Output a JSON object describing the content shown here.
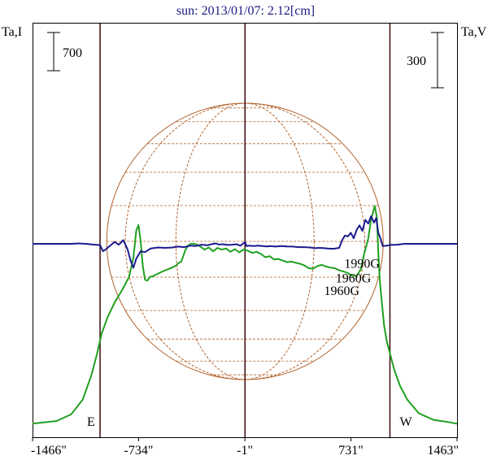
{
  "chart_data": {
    "type": "line",
    "title": "sun: 2013/01/07: 2.12[cm]",
    "left_axis_label": "Ta,I",
    "right_axis_label": "Ta,V",
    "left_scale_bar_value": "700",
    "right_scale_bar_value": "300",
    "x_unit": "arcsec",
    "xlim": [
      -1466,
      1463
    ],
    "x_ticks": [
      {
        "value": -1466,
        "label": "-1466\""
      },
      {
        "value": -734,
        "label": "-734\""
      },
      {
        "value": -1,
        "label": "-1\""
      },
      {
        "value": 731,
        "label": "731\""
      },
      {
        "value": 1463,
        "label": "1463\""
      }
    ],
    "limb_markers": [
      {
        "x": -1000,
        "label": "E"
      },
      {
        "x": 0,
        "label": ""
      },
      {
        "x": 1000,
        "label": "W"
      }
    ],
    "annotations": [
      {
        "text": "1990G",
        "x": 820,
        "y_intensity": 2870
      },
      {
        "text": "1960G",
        "x": 760,
        "y_intensity": 2600
      },
      {
        "text": "1960G",
        "x": 680,
        "y_intensity": 2370
      }
    ],
    "series": [
      {
        "axis": "left",
        "color": "#20a020",
        "values": [
          [
            -1466,
            10
          ],
          [
            -1300,
            60
          ],
          [
            -1200,
            180
          ],
          [
            -1120,
            450
          ],
          [
            -1060,
            900
          ],
          [
            -1020,
            1300
          ],
          [
            -990,
            1650
          ],
          [
            -950,
            1950
          ],
          [
            -900,
            2230
          ],
          [
            -850,
            2450
          ],
          [
            -800,
            2700
          ],
          [
            -770,
            3050
          ],
          [
            -750,
            3550
          ],
          [
            -735,
            3650
          ],
          [
            -720,
            3350
          ],
          [
            -705,
            2900
          ],
          [
            -690,
            2650
          ],
          [
            -675,
            2630
          ],
          [
            -655,
            2700
          ],
          [
            -630,
            2720
          ],
          [
            -600,
            2760
          ],
          [
            -570,
            2800
          ],
          [
            -540,
            2830
          ],
          [
            -505,
            2870
          ],
          [
            -480,
            2900
          ],
          [
            -460,
            2950
          ],
          [
            -440,
            2980
          ],
          [
            -410,
            3200
          ],
          [
            -390,
            3280
          ],
          [
            -370,
            3310
          ],
          [
            -340,
            3300
          ],
          [
            -310,
            3260
          ],
          [
            -280,
            3200
          ],
          [
            -250,
            3240
          ],
          [
            -220,
            3170
          ],
          [
            -190,
            3230
          ],
          [
            -160,
            3200
          ],
          [
            -130,
            3220
          ],
          [
            -100,
            3160
          ],
          [
            -70,
            3210
          ],
          [
            -40,
            3150
          ],
          [
            -10,
            3200
          ],
          [
            20,
            3180
          ],
          [
            50,
            3140
          ],
          [
            80,
            3160
          ],
          [
            110,
            3120
          ],
          [
            140,
            3060
          ],
          [
            170,
            3080
          ],
          [
            200,
            3020
          ],
          [
            230,
            3030
          ],
          [
            260,
            3000
          ],
          [
            290,
            2970
          ],
          [
            320,
            2980
          ],
          [
            350,
            2960
          ],
          [
            380,
            2940
          ],
          [
            410,
            2910
          ],
          [
            440,
            2860
          ],
          [
            470,
            2850
          ],
          [
            500,
            2900
          ],
          [
            530,
            2920
          ],
          [
            560,
            2890
          ],
          [
            590,
            2870
          ],
          [
            620,
            2860
          ],
          [
            650,
            2820
          ],
          [
            680,
            2800
          ],
          [
            710,
            2770
          ],
          [
            740,
            2720
          ],
          [
            770,
            2720
          ],
          [
            800,
            2840
          ],
          [
            820,
            3100
          ],
          [
            850,
            3400
          ],
          [
            870,
            3750
          ],
          [
            895,
            4000
          ],
          [
            910,
            3800
          ],
          [
            920,
            3150
          ],
          [
            930,
            2650
          ],
          [
            940,
            2350
          ],
          [
            960,
            1800
          ],
          [
            980,
            1500
          ],
          [
            1000,
            1300
          ],
          [
            1030,
            1000
          ],
          [
            1070,
            700
          ],
          [
            1120,
            450
          ],
          [
            1200,
            200
          ],
          [
            1300,
            80
          ],
          [
            1400,
            40
          ],
          [
            1463,
            10
          ]
        ]
      },
      {
        "axis": "right",
        "color": "#1a1a90",
        "values": [
          [
            -1466,
            0
          ],
          [
            -1200,
            0
          ],
          [
            -1150,
            2
          ],
          [
            -1100,
            0
          ],
          [
            -1050,
            -4
          ],
          [
            -1000,
            -7
          ],
          [
            -980,
            -40
          ],
          [
            -960,
            -30
          ],
          [
            -930,
            -10
          ],
          [
            -900,
            10
          ],
          [
            -870,
            -5
          ],
          [
            -840,
            20
          ],
          [
            -810,
            -30
          ],
          [
            -790,
            -90
          ],
          [
            -770,
            -130
          ],
          [
            -750,
            -80
          ],
          [
            -720,
            -40
          ],
          [
            -690,
            -45
          ],
          [
            -650,
            -25
          ],
          [
            -600,
            -20
          ],
          [
            -550,
            -22
          ],
          [
            -500,
            -20
          ],
          [
            -460,
            -15
          ],
          [
            -420,
            -18
          ],
          [
            -380,
            -10
          ],
          [
            -340,
            -12
          ],
          [
            -300,
            -5
          ],
          [
            -260,
            -8
          ],
          [
            -220,
            0
          ],
          [
            -200,
            2
          ],
          [
            -180,
            -4
          ],
          [
            -150,
            -2
          ],
          [
            -120,
            -6
          ],
          [
            -90,
            -5
          ],
          [
            -60,
            -2
          ],
          [
            -30,
            -10
          ],
          [
            0,
            10
          ],
          [
            10,
            -12
          ],
          [
            30,
            -10
          ],
          [
            60,
            -12
          ],
          [
            90,
            -10
          ],
          [
            120,
            -12
          ],
          [
            150,
            -14
          ],
          [
            180,
            -12
          ],
          [
            210,
            -15
          ],
          [
            250,
            -12
          ],
          [
            290,
            -14
          ],
          [
            330,
            -15
          ],
          [
            370,
            -18
          ],
          [
            410,
            -18
          ],
          [
            450,
            -20
          ],
          [
            480,
            -24
          ],
          [
            510,
            -22
          ],
          [
            540,
            -23
          ],
          [
            570,
            -25
          ],
          [
            610,
            -27
          ],
          [
            650,
            -22
          ],
          [
            670,
            20
          ],
          [
            690,
            45
          ],
          [
            710,
            40
          ],
          [
            730,
            60
          ],
          [
            750,
            30
          ],
          [
            770,
            75
          ],
          [
            790,
            100
          ],
          [
            810,
            70
          ],
          [
            830,
            130
          ],
          [
            850,
            110
          ],
          [
            870,
            150
          ],
          [
            890,
            115
          ],
          [
            905,
            140
          ],
          [
            920,
            60
          ],
          [
            935,
            30
          ],
          [
            950,
            -12
          ],
          [
            980,
            -10
          ],
          [
            1000,
            -6
          ],
          [
            1050,
            -5
          ],
          [
            1100,
            0
          ],
          [
            1200,
            0
          ],
          [
            1463,
            0
          ]
        ]
      }
    ]
  }
}
